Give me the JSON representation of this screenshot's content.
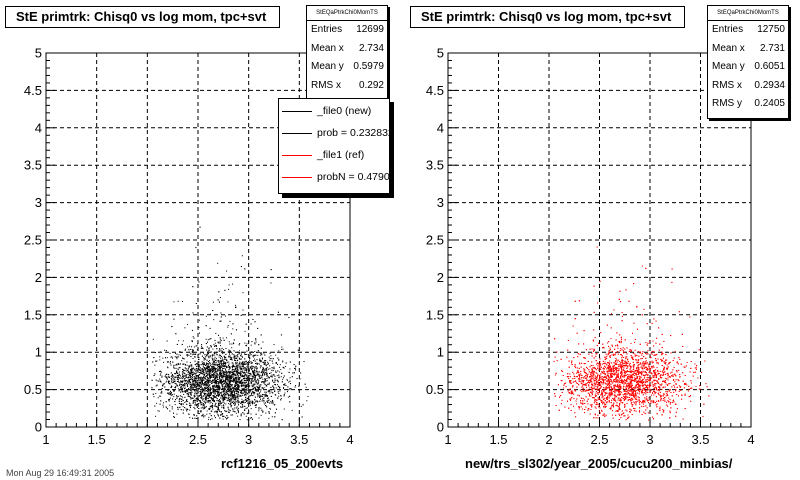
{
  "chart_data": [
    {
      "type": "scatter",
      "title": "StE primtrk: Chisq0 vs log mom, tpc+svt",
      "xlabel": "rcf1216_05_200evts",
      "ylabel": "",
      "xlim": [
        1,
        4
      ],
      "ylim": [
        0,
        5
      ],
      "x_ticks": [
        "1",
        "1.5",
        "2",
        "2.5",
        "3",
        "3.5",
        "4"
      ],
      "y_ticks": [
        "0",
        "0.5",
        "1",
        "1.5",
        "2",
        "2.5",
        "3",
        "3.5",
        "4",
        "4.5",
        "5"
      ],
      "grid": true,
      "marker_color": "#000000",
      "distribution": {
        "x_range": [
          2.04,
          3.7
        ],
        "x_center": 2.734,
        "y_center": 0.5979,
        "y_range": [
          0.1,
          2.85
        ]
      },
      "stats": {
        "name": "StEQaPtrkChi0MomTS",
        "rows": [
          {
            "label": "Entries",
            "value": "12699"
          },
          {
            "label": "Mean x",
            "value": "2.734"
          },
          {
            "label": "Mean y",
            "value": "0.5979"
          },
          {
            "label": "RMS x",
            "value": "0.292"
          }
        ]
      },
      "legend": {
        "placement": "top-right",
        "entries": [
          {
            "label": "_file0 (new)",
            "color": "#000000"
          },
          {
            "label": "prob = 0.232832",
            "color": "#000000"
          },
          {
            "label": "_file1 (ref)",
            "color": "#ff0000"
          },
          {
            "label": "probN = 0.479032",
            "color": "#ff0000"
          }
        ]
      }
    },
    {
      "type": "scatter",
      "title": "StE primtrk: Chisq0 vs log mom, tpc+svt",
      "xlabel": "new/trs_sl302/year_2005/cucu200_minbias/",
      "ylabel": "",
      "xlim": [
        1,
        4
      ],
      "ylim": [
        0,
        5
      ],
      "x_ticks": [
        "1",
        "1.5",
        "2",
        "2.5",
        "3",
        "3.5",
        "4"
      ],
      "y_ticks": [
        "0",
        "0.5",
        "1",
        "1.5",
        "2",
        "2.5",
        "3",
        "3.5",
        "4",
        "4.5",
        "5"
      ],
      "grid": true,
      "marker_color": "#ff0000",
      "distribution": {
        "x_range": [
          2.04,
          3.7
        ],
        "x_center": 2.731,
        "y_center": 0.6051,
        "y_range": [
          0.1,
          2.6
        ]
      },
      "stats": {
        "name": "StEQaPtrkChi0MomTS",
        "rows": [
          {
            "label": "Entries",
            "value": "12750"
          },
          {
            "label": "Mean x",
            "value": "2.731"
          },
          {
            "label": "Mean y",
            "value": "0.6051"
          },
          {
            "label": "RMS x",
            "value": "0.2934"
          },
          {
            "label": "RMS y",
            "value": "0.2405"
          }
        ]
      }
    }
  ],
  "footer": "Mon Aug 29 16:49:31 2005"
}
